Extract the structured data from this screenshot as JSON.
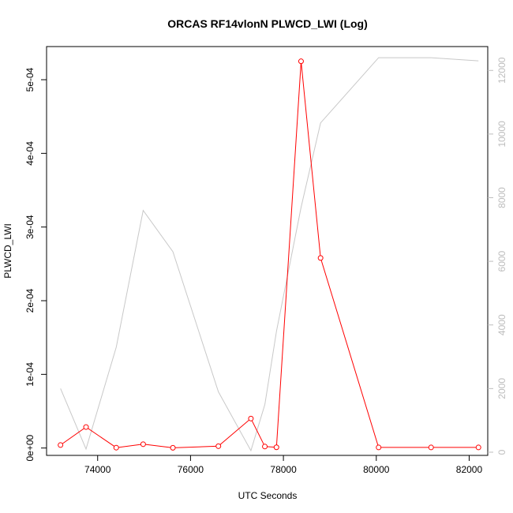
{
  "chart_data": {
    "type": "line",
    "title": "ORCAS RF14vlonN PLWCD_LWI (Log)",
    "xlabel": "UTC Seconds",
    "ylabel": "PLWCD_LWI",
    "xlim": [
      72900,
      82400
    ],
    "ylim": [
      -1e-05,
      0.000545
    ],
    "y2lim": [
      -100,
      12750
    ],
    "x_ticks": [
      74000,
      76000,
      78000,
      80000,
      82000
    ],
    "x_tick_labels": [
      "74000",
      "76000",
      "78000",
      "80000",
      "82000"
    ],
    "y_ticks": [
      0,
      0.0001,
      0.0002,
      0.0003,
      0.0004,
      0.0005
    ],
    "y_tick_labels": [
      "0e+00",
      "1e-04",
      "2e-04",
      "3e-04",
      "4e-04",
      "5e-04"
    ],
    "y2_ticks": [
      0,
      2000,
      4000,
      6000,
      8000,
      10000,
      12000
    ],
    "y2_tick_labels": [
      "0",
      "2000",
      "4000",
      "6000",
      "8000",
      "10000",
      "12000"
    ],
    "series": [
      {
        "axis": "left",
        "color": "#ff0000",
        "markers": "open-circle",
        "x": [
          73200,
          73750,
          74400,
          74980,
          75620,
          76600,
          77300,
          77600,
          77850,
          78380,
          78800,
          80050,
          81180,
          82200
        ],
        "values": [
          4e-06,
          2.85e-05,
          5e-07,
          5.2e-06,
          3e-07,
          2.5e-06,
          4e-05,
          2e-06,
          1e-06,
          0.000525,
          0.000258,
          8e-07,
          8e-07,
          8e-07
        ]
      },
      {
        "axis": "right",
        "color": "#c8c8c8",
        "markers": "none",
        "x": [
          73200,
          73750,
          74400,
          74980,
          75620,
          76600,
          77300,
          77600,
          77850,
          78380,
          78800,
          80050,
          81180,
          82200
        ],
        "values": [
          2000,
          100,
          3300,
          7600,
          6300,
          1900,
          50,
          1500,
          3800,
          7700,
          10350,
          12400,
          12400,
          12300
        ]
      }
    ]
  }
}
